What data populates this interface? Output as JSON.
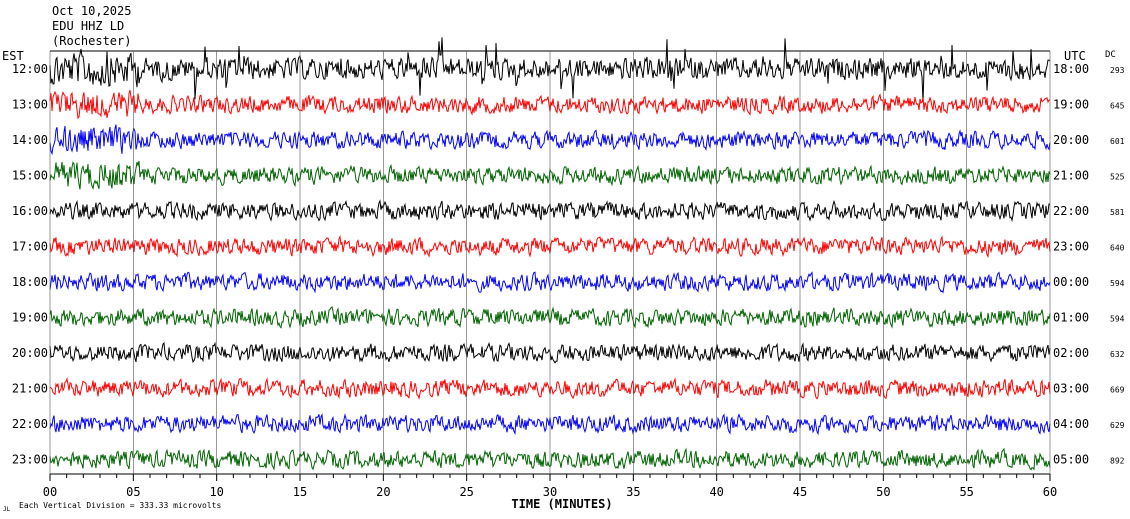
{
  "header": {
    "line1": "Oct 10,2025",
    "line2": "EDU HHZ LD",
    "line3": "(Rochester)"
  },
  "footer": {
    "scale_note": "Each Vertical Division = 333.33 microvolts",
    "tiny_mark": "JL"
  },
  "chart_data": {
    "type": "line",
    "title": "",
    "xlabel": "TIME (MINUTES)",
    "ylabel_left": "EST",
    "ylabel_right": "UTC",
    "dc_label": "DC",
    "xlim": [
      0,
      60
    ],
    "x_ticks": [
      "00",
      "05",
      "10",
      "15",
      "20",
      "25",
      "30",
      "35",
      "40",
      "45",
      "50",
      "55",
      "60"
    ],
    "rows": [
      {
        "est": "12:00",
        "utc": "18:00",
        "dc": "293",
        "color": "#000000",
        "amplitude": "high"
      },
      {
        "est": "13:00",
        "utc": "19:00",
        "dc": "645",
        "color": "#ff0000",
        "amplitude": "medium"
      },
      {
        "est": "14:00",
        "utc": "20:00",
        "dc": "601",
        "color": "#0000ff",
        "amplitude": "medium"
      },
      {
        "est": "15:00",
        "utc": "21:00",
        "dc": "525",
        "color": "#006400",
        "amplitude": "medium"
      },
      {
        "est": "16:00",
        "utc": "22:00",
        "dc": "581",
        "color": "#000000",
        "amplitude": "medium"
      },
      {
        "est": "17:00",
        "utc": "23:00",
        "dc": "640",
        "color": "#ff0000",
        "amplitude": "medium"
      },
      {
        "est": "18:00",
        "utc": "00:00",
        "dc": "594",
        "color": "#0000ff",
        "amplitude": "medium"
      },
      {
        "est": "19:00",
        "utc": "01:00",
        "dc": "594",
        "color": "#006400",
        "amplitude": "medium"
      },
      {
        "est": "20:00",
        "utc": "02:00",
        "dc": "632",
        "color": "#000000",
        "amplitude": "medium"
      },
      {
        "est": "21:00",
        "utc": "03:00",
        "dc": "669",
        "color": "#ff0000",
        "amplitude": "medium"
      },
      {
        "est": "22:00",
        "utc": "04:00",
        "dc": "629",
        "color": "#0000ff",
        "amplitude": "medium"
      },
      {
        "est": "23:00",
        "utc": "05:00",
        "dc": "892",
        "color": "#006400",
        "amplitude": "medium"
      }
    ]
  }
}
